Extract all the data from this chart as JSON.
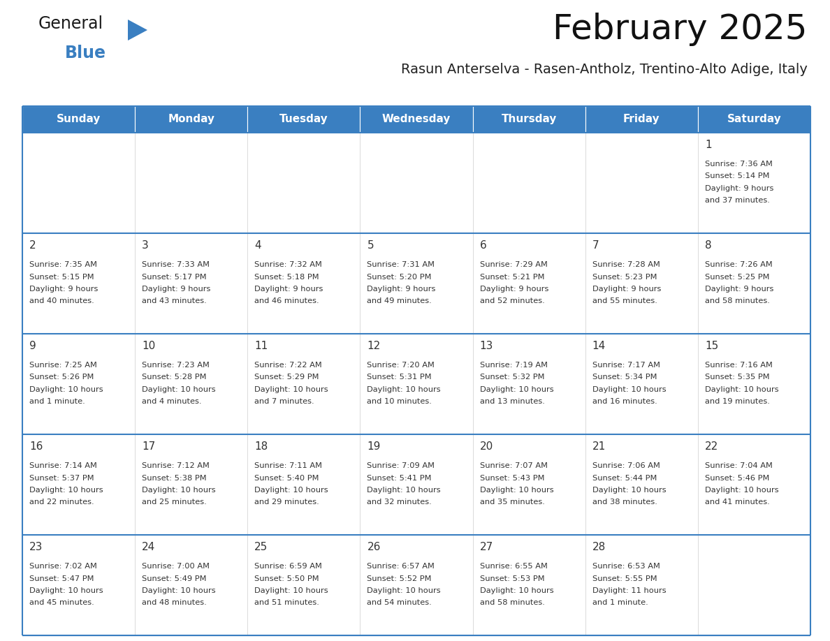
{
  "title": "February 2025",
  "subtitle": "Rasun Anterselva - Rasen-Antholz, Trentino-Alto Adige, Italy",
  "header_color": "#3A7FC1",
  "header_text_color": "#FFFFFF",
  "border_color": "#3A7FC1",
  "inner_line_color": "#C8D8E8",
  "day_names": [
    "Sunday",
    "Monday",
    "Tuesday",
    "Wednesday",
    "Thursday",
    "Friday",
    "Saturday"
  ],
  "days_data": [
    {
      "day": 1,
      "col": 6,
      "row": 0,
      "sunrise": "7:36 AM",
      "sunset": "5:14 PM",
      "daylight_h": "9 hours",
      "daylight_m": "37 minutes."
    },
    {
      "day": 2,
      "col": 0,
      "row": 1,
      "sunrise": "7:35 AM",
      "sunset": "5:15 PM",
      "daylight_h": "9 hours",
      "daylight_m": "40 minutes."
    },
    {
      "day": 3,
      "col": 1,
      "row": 1,
      "sunrise": "7:33 AM",
      "sunset": "5:17 PM",
      "daylight_h": "9 hours",
      "daylight_m": "43 minutes."
    },
    {
      "day": 4,
      "col": 2,
      "row": 1,
      "sunrise": "7:32 AM",
      "sunset": "5:18 PM",
      "daylight_h": "9 hours",
      "daylight_m": "46 minutes."
    },
    {
      "day": 5,
      "col": 3,
      "row": 1,
      "sunrise": "7:31 AM",
      "sunset": "5:20 PM",
      "daylight_h": "9 hours",
      "daylight_m": "49 minutes."
    },
    {
      "day": 6,
      "col": 4,
      "row": 1,
      "sunrise": "7:29 AM",
      "sunset": "5:21 PM",
      "daylight_h": "9 hours",
      "daylight_m": "52 minutes."
    },
    {
      "day": 7,
      "col": 5,
      "row": 1,
      "sunrise": "7:28 AM",
      "sunset": "5:23 PM",
      "daylight_h": "9 hours",
      "daylight_m": "55 minutes."
    },
    {
      "day": 8,
      "col": 6,
      "row": 1,
      "sunrise": "7:26 AM",
      "sunset": "5:25 PM",
      "daylight_h": "9 hours",
      "daylight_m": "58 minutes."
    },
    {
      "day": 9,
      "col": 0,
      "row": 2,
      "sunrise": "7:25 AM",
      "sunset": "5:26 PM",
      "daylight_h": "10 hours",
      "daylight_m": "1 minute."
    },
    {
      "day": 10,
      "col": 1,
      "row": 2,
      "sunrise": "7:23 AM",
      "sunset": "5:28 PM",
      "daylight_h": "10 hours",
      "daylight_m": "4 minutes."
    },
    {
      "day": 11,
      "col": 2,
      "row": 2,
      "sunrise": "7:22 AM",
      "sunset": "5:29 PM",
      "daylight_h": "10 hours",
      "daylight_m": "7 minutes."
    },
    {
      "day": 12,
      "col": 3,
      "row": 2,
      "sunrise": "7:20 AM",
      "sunset": "5:31 PM",
      "daylight_h": "10 hours",
      "daylight_m": "10 minutes."
    },
    {
      "day": 13,
      "col": 4,
      "row": 2,
      "sunrise": "7:19 AM",
      "sunset": "5:32 PM",
      "daylight_h": "10 hours",
      "daylight_m": "13 minutes."
    },
    {
      "day": 14,
      "col": 5,
      "row": 2,
      "sunrise": "7:17 AM",
      "sunset": "5:34 PM",
      "daylight_h": "10 hours",
      "daylight_m": "16 minutes."
    },
    {
      "day": 15,
      "col": 6,
      "row": 2,
      "sunrise": "7:16 AM",
      "sunset": "5:35 PM",
      "daylight_h": "10 hours",
      "daylight_m": "19 minutes."
    },
    {
      "day": 16,
      "col": 0,
      "row": 3,
      "sunrise": "7:14 AM",
      "sunset": "5:37 PM",
      "daylight_h": "10 hours",
      "daylight_m": "22 minutes."
    },
    {
      "day": 17,
      "col": 1,
      "row": 3,
      "sunrise": "7:12 AM",
      "sunset": "5:38 PM",
      "daylight_h": "10 hours",
      "daylight_m": "25 minutes."
    },
    {
      "day": 18,
      "col": 2,
      "row": 3,
      "sunrise": "7:11 AM",
      "sunset": "5:40 PM",
      "daylight_h": "10 hours",
      "daylight_m": "29 minutes."
    },
    {
      "day": 19,
      "col": 3,
      "row": 3,
      "sunrise": "7:09 AM",
      "sunset": "5:41 PM",
      "daylight_h": "10 hours",
      "daylight_m": "32 minutes."
    },
    {
      "day": 20,
      "col": 4,
      "row": 3,
      "sunrise": "7:07 AM",
      "sunset": "5:43 PM",
      "daylight_h": "10 hours",
      "daylight_m": "35 minutes."
    },
    {
      "day": 21,
      "col": 5,
      "row": 3,
      "sunrise": "7:06 AM",
      "sunset": "5:44 PM",
      "daylight_h": "10 hours",
      "daylight_m": "38 minutes."
    },
    {
      "day": 22,
      "col": 6,
      "row": 3,
      "sunrise": "7:04 AM",
      "sunset": "5:46 PM",
      "daylight_h": "10 hours",
      "daylight_m": "41 minutes."
    },
    {
      "day": 23,
      "col": 0,
      "row": 4,
      "sunrise": "7:02 AM",
      "sunset": "5:47 PM",
      "daylight_h": "10 hours",
      "daylight_m": "45 minutes."
    },
    {
      "day": 24,
      "col": 1,
      "row": 4,
      "sunrise": "7:00 AM",
      "sunset": "5:49 PM",
      "daylight_h": "10 hours",
      "daylight_m": "48 minutes."
    },
    {
      "day": 25,
      "col": 2,
      "row": 4,
      "sunrise": "6:59 AM",
      "sunset": "5:50 PM",
      "daylight_h": "10 hours",
      "daylight_m": "51 minutes."
    },
    {
      "day": 26,
      "col": 3,
      "row": 4,
      "sunrise": "6:57 AM",
      "sunset": "5:52 PM",
      "daylight_h": "10 hours",
      "daylight_m": "54 minutes."
    },
    {
      "day": 27,
      "col": 4,
      "row": 4,
      "sunrise": "6:55 AM",
      "sunset": "5:53 PM",
      "daylight_h": "10 hours",
      "daylight_m": "58 minutes."
    },
    {
      "day": 28,
      "col": 5,
      "row": 4,
      "sunrise": "6:53 AM",
      "sunset": "5:55 PM",
      "daylight_h": "11 hours",
      "daylight_m": "1 minute."
    }
  ],
  "num_rows": 5,
  "num_cols": 7,
  "logo_text_general": "General",
  "logo_text_blue": "Blue",
  "logo_color_dark": "#1A1A1A",
  "logo_color_blue": "#3A7FC1",
  "text_color": "#333333"
}
